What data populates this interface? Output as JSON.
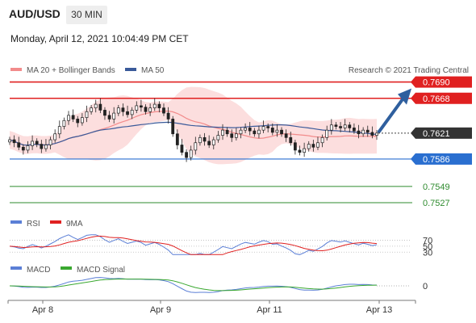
{
  "header": {
    "symbol": "AUD/USD",
    "timeframe": "30 MIN",
    "datetime": "Monday, April 12, 2021 10:04:49 PM CET"
  },
  "legend": {
    "ma20": {
      "label": "MA 20 + Bollinger Bands",
      "color": "#f28b8b"
    },
    "ma50": {
      "label": "MA 50",
      "color": "#3a5a9a"
    },
    "copyright": "Research © 2021 Trading Central"
  },
  "chart_data": [
    {
      "type": "candlestick",
      "ylim": [
        0.7515,
        0.7695
      ],
      "x_ticks": [
        "Apr 8",
        "Apr 9",
        "Apr 11",
        "Apr 13"
      ],
      "last_price": {
        "value": 0.7621,
        "label": "0.7621"
      },
      "levels": [
        {
          "value": 0.769,
          "label": "0.7690",
          "kind": "resistance",
          "color": "#e02020"
        },
        {
          "value": 0.7668,
          "label": "0.7668",
          "kind": "resistance",
          "color": "#e02020"
        },
        {
          "value": 0.7586,
          "label": "0.7586",
          "kind": "pivot",
          "color": "#2a6fd0"
        },
        {
          "value": 0.7549,
          "label": "0.7549",
          "kind": "support",
          "color": "#2e8b2e"
        },
        {
          "value": 0.7527,
          "label": "0.7527",
          "kind": "support",
          "color": "#2e8b2e"
        }
      ],
      "close_series": [
        0.7612,
        0.7608,
        0.7602,
        0.7598,
        0.7604,
        0.761,
        0.7606,
        0.76,
        0.7605,
        0.7612,
        0.762,
        0.763,
        0.7638,
        0.7645,
        0.764,
        0.7635,
        0.7642,
        0.765,
        0.7655,
        0.766,
        0.7652,
        0.7645,
        0.764,
        0.7648,
        0.7655,
        0.765,
        0.7646,
        0.7652,
        0.7658,
        0.7656,
        0.765,
        0.7655,
        0.766,
        0.7655,
        0.7648,
        0.764,
        0.762,
        0.7605,
        0.7595,
        0.7588,
        0.7598,
        0.7608,
        0.7615,
        0.761,
        0.7605,
        0.7612,
        0.7618,
        0.7625,
        0.762,
        0.7615,
        0.762,
        0.7625,
        0.7628,
        0.7624,
        0.762,
        0.7625,
        0.763,
        0.7628,
        0.7622,
        0.7625,
        0.762,
        0.7615,
        0.7608,
        0.7598,
        0.7595,
        0.76,
        0.7606,
        0.7602,
        0.7608,
        0.7615,
        0.7625,
        0.7632,
        0.763,
        0.7628,
        0.7632,
        0.7628,
        0.7624,
        0.762,
        0.7625,
        0.7622,
        0.7618,
        0.7621
      ]
    },
    {
      "type": "line",
      "name": "RSI",
      "series": [
        {
          "name": "RSI",
          "color": "#5b7fd6"
        },
        {
          "name": "9MA",
          "color": "#e02020"
        }
      ],
      "levels": [
        70,
        50,
        30
      ]
    },
    {
      "type": "line",
      "name": "MACD",
      "series": [
        {
          "name": "MACD",
          "color": "#5b7fd6"
        },
        {
          "name": "MACD Signal",
          "color": "#3aa830"
        }
      ],
      "levels": [
        0
      ]
    }
  ]
}
